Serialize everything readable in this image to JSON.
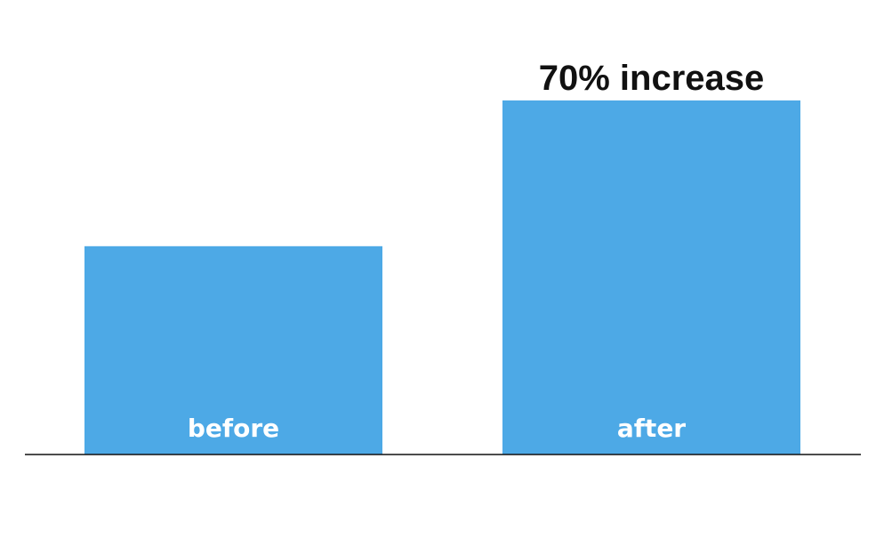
{
  "chart_data": {
    "type": "bar",
    "categories": [
      "before",
      "after"
    ],
    "values": [
      1.0,
      1.7
    ],
    "ylim": [
      0,
      1.96
    ],
    "annotations": [
      {
        "category": "after",
        "text": "70% increase"
      }
    ],
    "bar_color": "#4DA9E6",
    "axis_color": "#111111",
    "grid": false,
    "title": "",
    "xlabel": "",
    "ylabel": ""
  }
}
